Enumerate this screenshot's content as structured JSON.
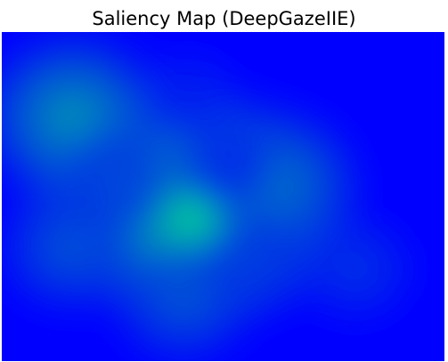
{
  "chart_data": {
    "type": "heatmap",
    "title": "Saliency Map (DeepGazeIIE)",
    "colormap": "winter",
    "colormap_stops": [
      "#0000ff",
      "#00ff80"
    ],
    "axes_visible": false,
    "grid": false,
    "legend": "none",
    "value_range": [
      0,
      1
    ],
    "hotspots": [
      {
        "x": 0.16,
        "y": 0.26,
        "intensity": 0.62
      },
      {
        "x": 0.45,
        "y": 0.55,
        "intensity": 0.9
      },
      {
        "x": 0.63,
        "y": 0.46,
        "intensity": 0.45
      },
      {
        "x": 0.26,
        "y": 0.45,
        "intensity": 0.3
      },
      {
        "x": 0.15,
        "y": 0.66,
        "intensity": 0.35
      },
      {
        "x": 0.41,
        "y": 0.82,
        "intensity": 0.35
      },
      {
        "x": 0.57,
        "y": 0.7,
        "intensity": 0.25
      },
      {
        "x": 0.8,
        "y": 0.72,
        "intensity": 0.22
      },
      {
        "x": 0.42,
        "y": 0.2,
        "intensity": 0.15
      },
      {
        "x": 0.5,
        "y": 0.4,
        "intensity": 0.2
      }
    ]
  }
}
